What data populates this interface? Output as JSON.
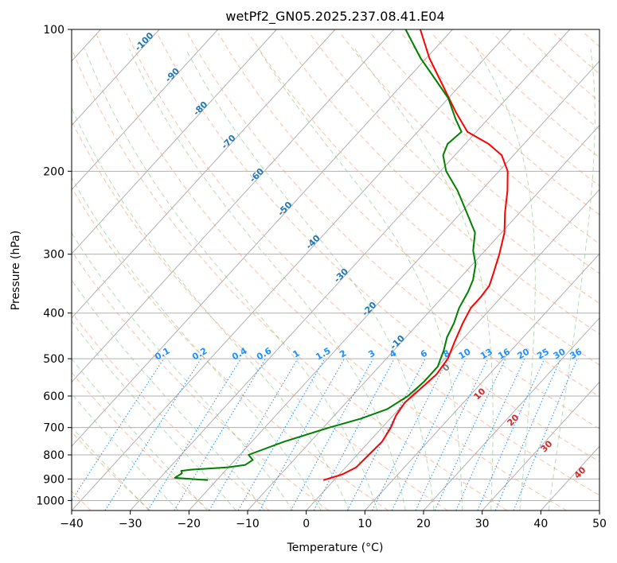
{
  "chart_data": {
    "type": "line",
    "title": "wetPf2_GN05.2025.237.08.41.E04",
    "xlabel": "Temperature (°C)",
    "ylabel": "Pressure (hPa)",
    "xlim": [
      -40,
      50
    ],
    "ylim": [
      1050,
      100
    ],
    "y_scale": "log",
    "x_ticks": [
      -40,
      -30,
      -20,
      -10,
      0,
      10,
      20,
      30,
      40,
      50
    ],
    "y_ticks": [
      100,
      200,
      300,
      400,
      500,
      600,
      700,
      800,
      900,
      1000
    ],
    "grid": true,
    "skew_t": true,
    "series": [
      {
        "color": "#ff0000",
        "points": [
          [
            -1.8,
            905
          ],
          [
            0.5,
            880
          ],
          [
            1.8,
            850
          ],
          [
            2.0,
            800
          ],
          [
            2.2,
            750
          ],
          [
            1.5,
            700
          ],
          [
            0.5,
            660
          ],
          [
            0.0,
            620
          ],
          [
            0.5,
            580
          ],
          [
            1.0,
            540
          ],
          [
            0.5,
            500
          ],
          [
            -1.0,
            460
          ],
          [
            -2.5,
            420
          ],
          [
            -3.5,
            390
          ],
          [
            -3.5,
            370
          ],
          [
            -3.8,
            350
          ],
          [
            -5.0,
            330
          ],
          [
            -7.0,
            300
          ],
          [
            -9.5,
            270
          ],
          [
            -12.5,
            245
          ],
          [
            -15.5,
            220
          ],
          [
            -18.5,
            200
          ],
          [
            -22.0,
            185
          ],
          [
            -26.0,
            175
          ],
          [
            -31.5,
            165
          ],
          [
            -36.5,
            150
          ],
          [
            -43.5,
            130
          ],
          [
            -49.5,
            115
          ],
          [
            -55.5,
            100
          ]
        ]
      },
      {
        "color": "#008000",
        "points": [
          [
            -21.5,
            905
          ],
          [
            -27.5,
            895
          ],
          [
            -27.0,
            875
          ],
          [
            -27.5,
            865
          ],
          [
            -26.0,
            860
          ],
          [
            -20.0,
            850
          ],
          [
            -17.5,
            840
          ],
          [
            -17.0,
            820
          ],
          [
            -18.5,
            800
          ],
          [
            -14.5,
            750
          ],
          [
            -9.0,
            700
          ],
          [
            -5.0,
            670
          ],
          [
            -2.0,
            640
          ],
          [
            -0.5,
            600
          ],
          [
            0.0,
            560
          ],
          [
            0.0,
            520
          ],
          [
            -1.5,
            480
          ],
          [
            -3.0,
            450
          ],
          [
            -4.0,
            420
          ],
          [
            -5.5,
            390
          ],
          [
            -6.5,
            360
          ],
          [
            -7.5,
            340
          ],
          [
            -9.5,
            315
          ],
          [
            -12.0,
            295
          ],
          [
            -14.5,
            270
          ],
          [
            -19.0,
            245
          ],
          [
            -24.0,
            220
          ],
          [
            -29.0,
            200
          ],
          [
            -32.0,
            185
          ],
          [
            -33.0,
            175
          ],
          [
            -32.5,
            165
          ],
          [
            -35.5,
            155
          ],
          [
            -40.0,
            140
          ],
          [
            -45.0,
            128
          ],
          [
            -51.0,
            115
          ],
          [
            -58.0,
            100
          ]
        ]
      }
    ],
    "isotherm_labels": [
      "-100",
      "-90",
      "-80",
      "-70",
      "-60",
      "-50",
      "-40",
      "-30",
      "-20",
      "-10"
    ],
    "mixing_ratio_labels": [
      "0.1",
      "0.2",
      "0.4",
      "0.6",
      "1",
      "1.5",
      "2",
      "3",
      "4",
      "6",
      "8",
      "10",
      "13",
      "16",
      "20",
      "25",
      "30",
      "36"
    ],
    "moist_adiabat_labels": [
      "0",
      "10",
      "20",
      "30",
      "40"
    ],
    "colors": {
      "temperature": "#ff0000",
      "dewpoint": "#008000",
      "isotherm_label": "#1f77b4",
      "mixing_ratio": "#1e90ff",
      "moist_label_red": "#d62728",
      "moist_label_zero": "#808080",
      "dry_adiabat": "#ff7f50",
      "moist_adiabat": "#2ca02c",
      "grid": "#b0b0b0"
    }
  }
}
